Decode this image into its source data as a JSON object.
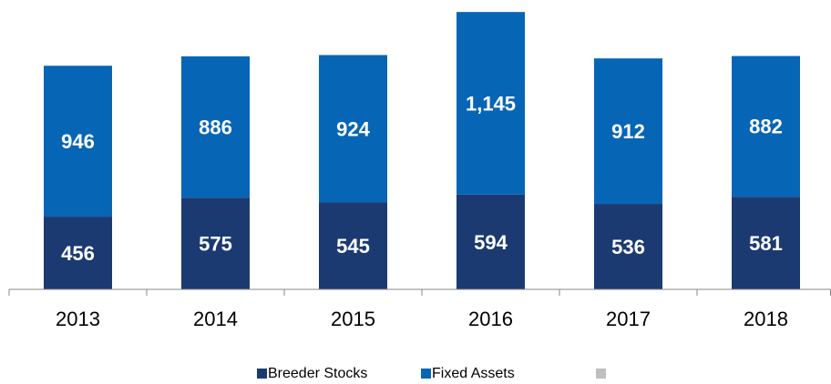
{
  "chart_data": {
    "type": "stacked_bar",
    "categories": [
      "2013",
      "2014",
      "2015",
      "2016",
      "2017",
      "2018"
    ],
    "series": [
      {
        "name": "Breeder Stocks",
        "color": "#1b3a72",
        "values": [
          456,
          575,
          545,
          594,
          536,
          581
        ]
      },
      {
        "name": "Fixed Assets",
        "color": "#0765b5",
        "values": [
          946,
          886,
          924,
          1145,
          912,
          882
        ],
        "value_labels": [
          "946",
          "886",
          "924",
          "1,145",
          "912",
          "882"
        ]
      }
    ],
    "ylim": [
      0,
      1740
    ],
    "legend": "bottom"
  }
}
